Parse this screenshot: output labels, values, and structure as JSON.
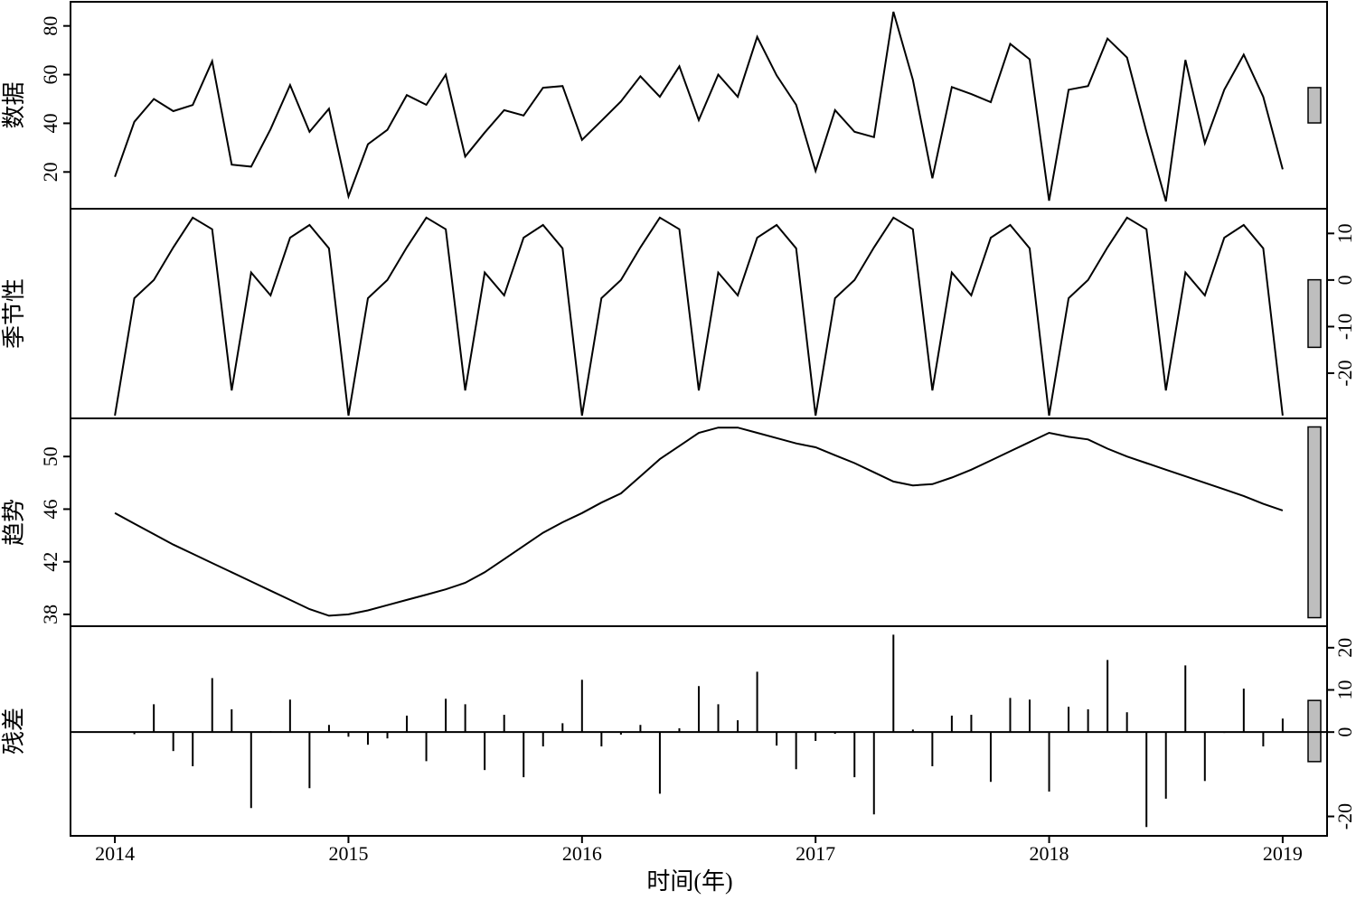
{
  "chart_data": {
    "type": "stl",
    "x_label": "时间(年)",
    "x": [
      2014,
      2014.0833,
      2014.1667,
      2014.25,
      2014.3333,
      2014.4167,
      2014.5,
      2014.5833,
      2014.6667,
      2014.75,
      2014.8333,
      2014.9167,
      2015,
      2015.0833,
      2015.1667,
      2015.25,
      2015.3333,
      2015.4167,
      2015.5,
      2015.5833,
      2015.6667,
      2015.75,
      2015.8333,
      2015.9167,
      2016,
      2016.0833,
      2016.1667,
      2016.25,
      2016.3333,
      2016.4167,
      2016.5,
      2016.5833,
      2016.6667,
      2016.75,
      2016.8333,
      2016.9167,
      2017,
      2017.0833,
      2017.1667,
      2017.25,
      2017.3333,
      2017.4167,
      2017.5,
      2017.5833,
      2017.6667,
      2017.75,
      2017.8333,
      2017.9167,
      2018,
      2018.0833,
      2018.1667,
      2018.25,
      2018.3333,
      2018.4167,
      2018.5,
      2018.5833,
      2018.6667,
      2018.75,
      2018.8333,
      2018.9167,
      2019
    ],
    "xlim": [
      2013.81,
      2019.19
    ],
    "xticks": [
      2014,
      2015,
      2016,
      2017,
      2018,
      2019
    ],
    "range_bar": 14.5,
    "panels": [
      {
        "type": "line",
        "y_label": "数据",
        "axis_side": "left",
        "ylim": [
          4.9,
          89.9
        ],
        "yticks": [
          20,
          40,
          60,
          80
        ],
        "values": [
          18,
          40.6,
          50,
          45,
          47.5,
          65.5,
          23,
          22.2,
          37.6,
          55.7,
          36.5,
          46,
          10,
          31.4,
          37.3,
          51.6,
          47.6,
          60,
          26.3,
          36.2,
          45.4,
          43.2,
          54.6,
          55.3,
          33.2,
          41,
          49,
          59.3,
          50.9,
          63.4,
          41.3,
          60,
          50.9,
          75.5,
          59.7,
          47.6,
          20.4,
          45.4,
          36.5,
          34.3,
          85.8,
          57.9,
          17.4,
          54.9,
          52,
          48.7,
          72.6,
          66.3,
          8.2,
          53.8,
          55.3,
          74.8,
          67,
          36.5,
          7.9,
          66,
          31.8,
          53.8,
          68.2,
          50.9,
          21.1
        ]
      },
      {
        "type": "line",
        "y_label": "季节性",
        "axis_side": "right",
        "ylim": [
          -29.7,
          15.3
        ],
        "yticks": [
          -20,
          -10,
          0,
          10
        ],
        "values": [
          -29.1,
          -3.9,
          0,
          7,
          13.4,
          10.9,
          -23.7,
          1.6,
          -3.3,
          9.1,
          11.8,
          6.8,
          -29.1,
          -3.9,
          0,
          7,
          13.4,
          10.9,
          -23.7,
          1.6,
          -3.3,
          9.1,
          11.8,
          6.8,
          -29.1,
          -3.9,
          0,
          7,
          13.4,
          10.9,
          -23.7,
          1.6,
          -3.3,
          9.1,
          11.8,
          6.8,
          -29.1,
          -3.9,
          0,
          7,
          13.4,
          10.9,
          -23.7,
          1.6,
          -3.3,
          9.1,
          11.8,
          6.8,
          -29.1,
          -3.9,
          0,
          7,
          13.4,
          10.9,
          -23.7,
          1.6,
          -3.3,
          9.1,
          11.8,
          6.8,
          -29.1
        ]
      },
      {
        "type": "line",
        "y_label": "趋势",
        "axis_side": "left",
        "ylim": [
          37.1,
          52.9
        ],
        "yticks": [
          38,
          42,
          46,
          50
        ],
        "values": [
          45.7,
          44.9,
          44.1,
          43.3,
          42.6,
          41.9,
          41.2,
          40.5,
          39.8,
          39.1,
          38.4,
          37.9,
          38.0,
          38.3,
          38.7,
          39.1,
          39.5,
          39.9,
          40.4,
          41.2,
          42.2,
          43.2,
          44.2,
          45.0,
          45.7,
          46.5,
          47.2,
          48.5,
          49.8,
          50.8,
          51.8,
          52.2,
          52.2,
          51.8,
          51.4,
          51.0,
          50.7,
          50.1,
          49.5,
          48.8,
          48.1,
          47.8,
          47.9,
          48.4,
          49.0,
          49.7,
          50.4,
          51.1,
          51.8,
          51.5,
          51.3,
          50.6,
          50.0,
          49.5,
          49.0,
          48.5,
          48.0,
          47.5,
          47.0,
          46.4,
          45.9
        ]
      },
      {
        "type": "spike",
        "y_label": "残差",
        "axis_side": "right",
        "ylim": [
          -24.6,
          25.1
        ],
        "yticks": [
          -20,
          0,
          10,
          20
        ],
        "values": [
          0,
          -0.5,
          6.6,
          -4.5,
          -8.1,
          12.8,
          5.4,
          -18,
          0.2,
          7.7,
          -13.3,
          1.7,
          -1.1,
          -3,
          -1.5,
          3.9,
          -6.9,
          7.9,
          6.6,
          -9,
          4.1,
          -10.7,
          -3.4,
          2.1,
          12.4,
          -3.4,
          -0.6,
          1.7,
          -14.6,
          0.9,
          10.9,
          6.6,
          2.8,
          14.3,
          -3.2,
          -8.8,
          -2.1,
          -0.4,
          -10.7,
          -19.5,
          23.1,
          0.6,
          -8.1,
          3.9,
          4.1,
          -11.8,
          8.1,
          7.7,
          -14.1,
          6,
          5.4,
          17.1,
          4.7,
          -22.5,
          -15.8,
          15.8,
          -11.6,
          -0.2,
          10.3,
          -3.4,
          3.2
        ]
      }
    ]
  }
}
